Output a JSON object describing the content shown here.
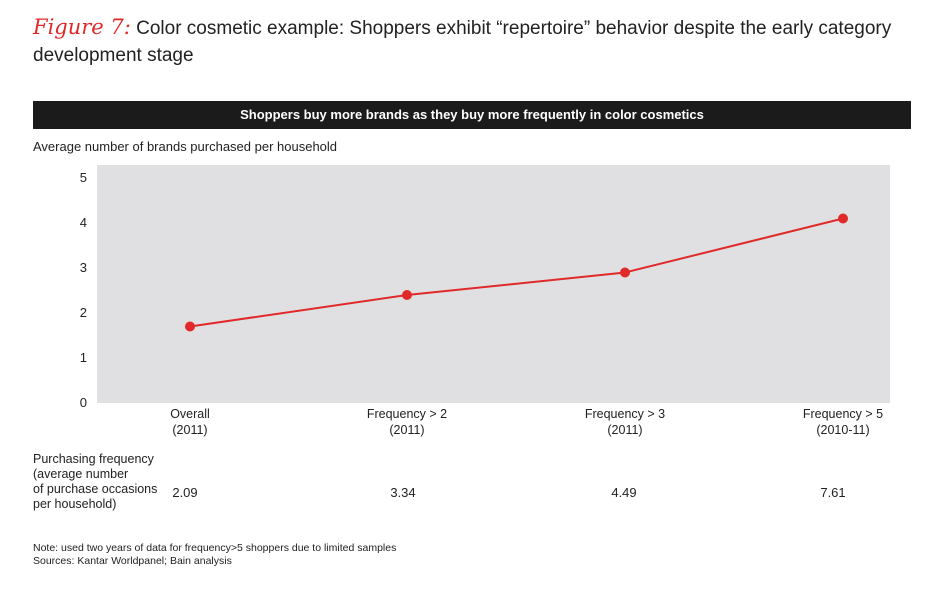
{
  "figure": {
    "label": "Figure 7:",
    "title": "Color cosmetic example: Shoppers exhibit “repertoire” behavior despite the early category development stage"
  },
  "banner": "Shoppers buy more brands as they buy more frequently in color cosmetics",
  "colors": {
    "line": "#e02a2a",
    "plot_bg": "#e0e0e2",
    "banner_bg": "#1b1b1b"
  },
  "chart_data": {
    "type": "line",
    "ylabel": "Average number of brands purchased per household",
    "ylim": [
      0,
      5
    ],
    "yticks": [
      0,
      1,
      2,
      3,
      4,
      5
    ],
    "categories": [
      [
        "Overall",
        "(2011)"
      ],
      [
        "Frequency > 2",
        "(2011)"
      ],
      [
        "Frequency > 3",
        "(2011)"
      ],
      [
        "Frequency > 5",
        "(2010-11)"
      ]
    ],
    "series": [
      {
        "values": [
          1.7,
          2.4,
          2.9,
          4.1
        ]
      }
    ],
    "grid": false
  },
  "frequency_row": {
    "label": [
      "Purchasing frequency",
      "(average number",
      "of purchase occasions",
      "per household)"
    ],
    "values": [
      "2.09",
      "3.34",
      "4.49",
      "7.61"
    ]
  },
  "notes": [
    "Note: used two years of data for frequency>5 shoppers due to limited samples",
    "Sources: Kantar Worldpanel; Bain analysis"
  ]
}
